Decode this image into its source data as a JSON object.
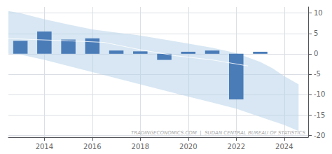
{
  "chart_data": {
    "type": "bar",
    "series": [
      {
        "type": "band",
        "color": "#b8d4ea",
        "x": [
          2012.5,
          2013.0,
          2014.0,
          2015.0,
          2016.0,
          2017.0,
          2018.0,
          2019.0,
          2020.0,
          2021.0,
          2022.0,
          2023.0,
          2023.5,
          2024.0,
          2024.6
        ],
        "upper": [
          10.5,
          10.0,
          8.5,
          7.2,
          6.0,
          5.2,
          4.5,
          3.5,
          2.5,
          1.5,
          0.2,
          -2.0,
          -3.5,
          -5.5,
          -7.5
        ],
        "lower": [
          0.0,
          -0.2,
          -1.5,
          -3.0,
          -4.5,
          -6.0,
          -7.5,
          -9.0,
          -10.5,
          -12.0,
          -13.5,
          -15.5,
          -16.5,
          -17.5,
          -19.0
        ]
      },
      {
        "type": "line",
        "color": "#ffffff",
        "x": [
          2012.5,
          2013.5,
          2015.0,
          2016.5,
          2018.0,
          2019.5,
          2021.0,
          2022.5
        ],
        "values": [
          3.8,
          3.5,
          3.2,
          2.8,
          1.0,
          -0.5,
          -1.5,
          -3.0
        ]
      },
      {
        "type": "bar",
        "color": "#4a7cb8",
        "x": [
          2013,
          2014,
          2015,
          2016,
          2017,
          2018,
          2019,
          2020,
          2021,
          2022,
          2023
        ],
        "values": [
          3.2,
          5.5,
          3.5,
          3.8,
          0.8,
          0.6,
          -1.5,
          0.5,
          0.8,
          -11.2,
          0.5
        ]
      }
    ],
    "xlim": [
      2012.5,
      2025.0
    ],
    "ylim": [
      -20.5,
      11.5
    ],
    "xticks": [
      2014,
      2016,
      2018,
      2020,
      2022,
      2024
    ],
    "yticks": [
      10,
      5,
      0,
      -5,
      -10,
      -15,
      -20
    ],
    "grid": true,
    "annotations": [
      "TRADINGECONOMICS.COM  |  SUDAN CENTRAL BUREAU OF STATISTICS"
    ]
  }
}
